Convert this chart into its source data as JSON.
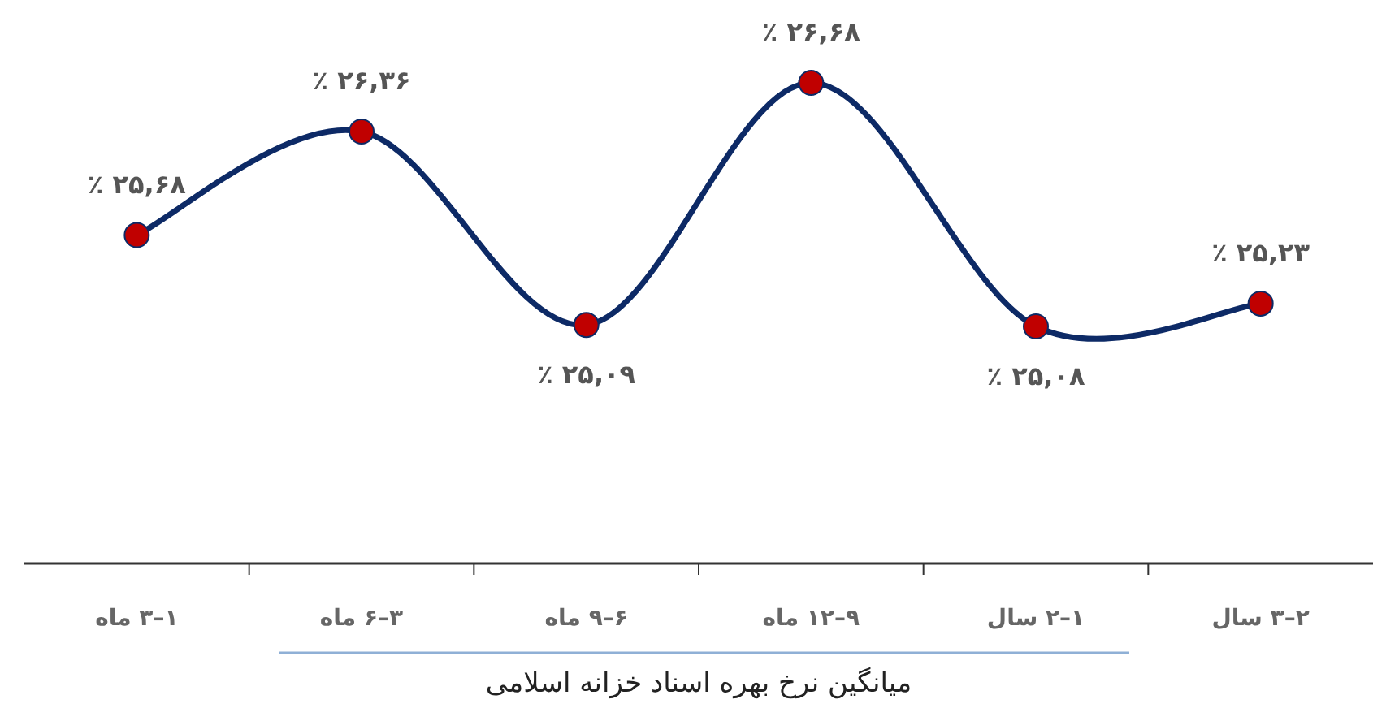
{
  "chart_data": {
    "type": "line",
    "xlabel": "میانگین نرخ بهره اسناد خزانه اسلامی",
    "categories": [
      "۱–۳ ماه",
      "۳–۶ ماه",
      "۶–۹ ماه",
      "۹–۱۲ ماه",
      "۱–۲ سال",
      "۲–۳ سال"
    ],
    "series": [
      {
        "color": "#0d2a66",
        "colors": [
          "#c00000",
          "#c00000",
          "#c00000",
          "#c00000",
          "#c00000",
          "#c00000"
        ],
        "values": [
          25.68,
          26.36,
          25.09,
          26.68,
          25.08,
          25.23
        ],
        "value_labels": [
          "٪ ۲۵,۶۸",
          "٪ ۲۶,۳۶",
          "٪ ۲۵,۰۹",
          "٪ ۲۶,۶۸",
          "٪ ۲۵,۰۸",
          "٪ ۲۵,۲۳"
        ]
      }
    ],
    "marker": "circle",
    "line_style": "solid"
  }
}
